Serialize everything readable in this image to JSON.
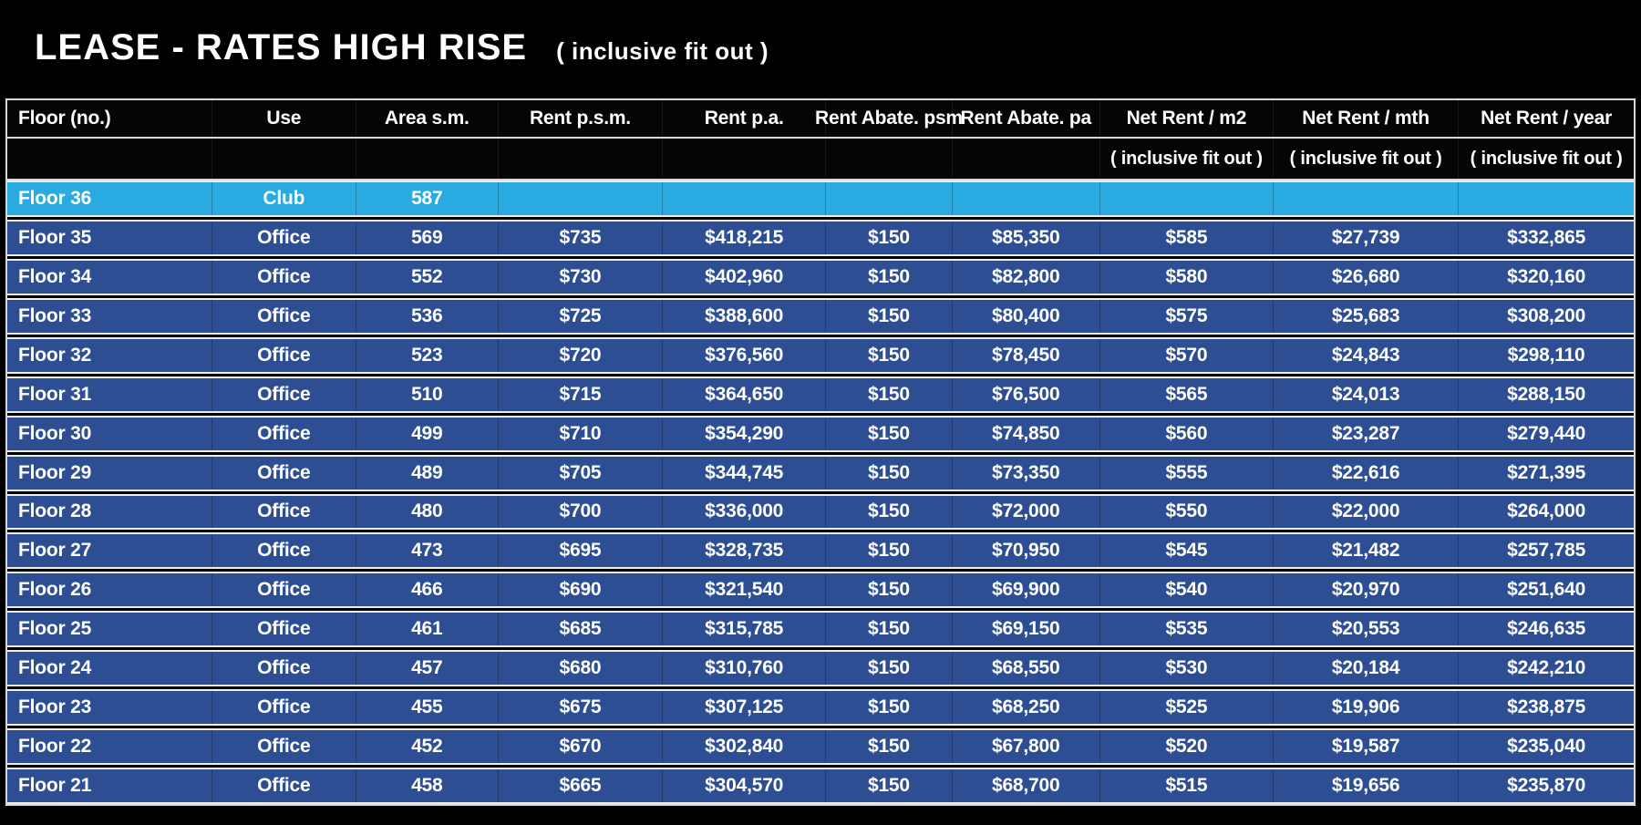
{
  "title": {
    "main": "LEASE - RATES HIGH RISE",
    "sub": "( inclusive fit out )"
  },
  "colors": {
    "background": "#000000",
    "header_bg": "#050505",
    "data_row": "#2E4E93",
    "highlight_row": "#29ABE2",
    "row_border": "#D9D9D9",
    "text": "#FFFFFF"
  },
  "table": {
    "columns": [
      {
        "key": "floor",
        "label": "Floor (no.)",
        "sub": ""
      },
      {
        "key": "use",
        "label": "Use",
        "sub": ""
      },
      {
        "key": "area-sm",
        "label": "Area s.m.",
        "sub": ""
      },
      {
        "key": "rent-psm",
        "label": "Rent p.s.m.",
        "sub": ""
      },
      {
        "key": "rent-pa",
        "label": "Rent p.a.",
        "sub": ""
      },
      {
        "key": "rent-abate-psm",
        "label": "Rent Abate. psm",
        "sub": ""
      },
      {
        "key": "rent-abate-pa",
        "label": "Rent Abate. pa",
        "sub": ""
      },
      {
        "key": "net-rent-m2",
        "label": "Net Rent / m2",
        "sub": "( inclusive fit out )"
      },
      {
        "key": "net-rent-mth",
        "label": "Net Rent / mth",
        "sub": "( inclusive fit out )"
      },
      {
        "key": "net-rent-year",
        "label": "Net Rent / year",
        "sub": "( inclusive fit out )"
      }
    ],
    "rows": [
      {
        "highlight": true,
        "cells": [
          "Floor 36",
          "Club",
          "587",
          "",
          "",
          "",
          "",
          "",
          "",
          ""
        ]
      },
      {
        "highlight": false,
        "cells": [
          "Floor 35",
          "Office",
          "569",
          "$735",
          "$418,215",
          "$150",
          "$85,350",
          "$585",
          "$27,739",
          "$332,865"
        ]
      },
      {
        "highlight": false,
        "cells": [
          "Floor 34",
          "Office",
          "552",
          "$730",
          "$402,960",
          "$150",
          "$82,800",
          "$580",
          "$26,680",
          "$320,160"
        ]
      },
      {
        "highlight": false,
        "cells": [
          "Floor 33",
          "Office",
          "536",
          "$725",
          "$388,600",
          "$150",
          "$80,400",
          "$575",
          "$25,683",
          "$308,200"
        ]
      },
      {
        "highlight": false,
        "cells": [
          "Floor 32",
          "Office",
          "523",
          "$720",
          "$376,560",
          "$150",
          "$78,450",
          "$570",
          "$24,843",
          "$298,110"
        ]
      },
      {
        "highlight": false,
        "cells": [
          "Floor 31",
          "Office",
          "510",
          "$715",
          "$364,650",
          "$150",
          "$76,500",
          "$565",
          "$24,013",
          "$288,150"
        ]
      },
      {
        "highlight": false,
        "cells": [
          "Floor 30",
          "Office",
          "499",
          "$710",
          "$354,290",
          "$150",
          "$74,850",
          "$560",
          "$23,287",
          "$279,440"
        ]
      },
      {
        "highlight": false,
        "cells": [
          "Floor 29",
          "Office",
          "489",
          "$705",
          "$344,745",
          "$150",
          "$73,350",
          "$555",
          "$22,616",
          "$271,395"
        ]
      },
      {
        "highlight": false,
        "cells": [
          "Floor 28",
          "Office",
          "480",
          "$700",
          "$336,000",
          "$150",
          "$72,000",
          "$550",
          "$22,000",
          "$264,000"
        ]
      },
      {
        "highlight": false,
        "cells": [
          "Floor 27",
          "Office",
          "473",
          "$695",
          "$328,735",
          "$150",
          "$70,950",
          "$545",
          "$21,482",
          "$257,785"
        ]
      },
      {
        "highlight": false,
        "cells": [
          "Floor 26",
          "Office",
          "466",
          "$690",
          "$321,540",
          "$150",
          "$69,900",
          "$540",
          "$20,970",
          "$251,640"
        ]
      },
      {
        "highlight": false,
        "cells": [
          "Floor 25",
          "Office",
          "461",
          "$685",
          "$315,785",
          "$150",
          "$69,150",
          "$535",
          "$20,553",
          "$246,635"
        ]
      },
      {
        "highlight": false,
        "cells": [
          "Floor 24",
          "Office",
          "457",
          "$680",
          "$310,760",
          "$150",
          "$68,550",
          "$530",
          "$20,184",
          "$242,210"
        ]
      },
      {
        "highlight": false,
        "cells": [
          "Floor 23",
          "Office",
          "455",
          "$675",
          "$307,125",
          "$150",
          "$68,250",
          "$525",
          "$19,906",
          "$238,875"
        ]
      },
      {
        "highlight": false,
        "cells": [
          "Floor 22",
          "Office",
          "452",
          "$670",
          "$302,840",
          "$150",
          "$67,800",
          "$520",
          "$19,587",
          "$235,040"
        ]
      },
      {
        "highlight": false,
        "cells": [
          "Floor 21",
          "Office",
          "458",
          "$665",
          "$304,570",
          "$150",
          "$68,700",
          "$515",
          "$19,656",
          "$235,870"
        ]
      }
    ]
  }
}
